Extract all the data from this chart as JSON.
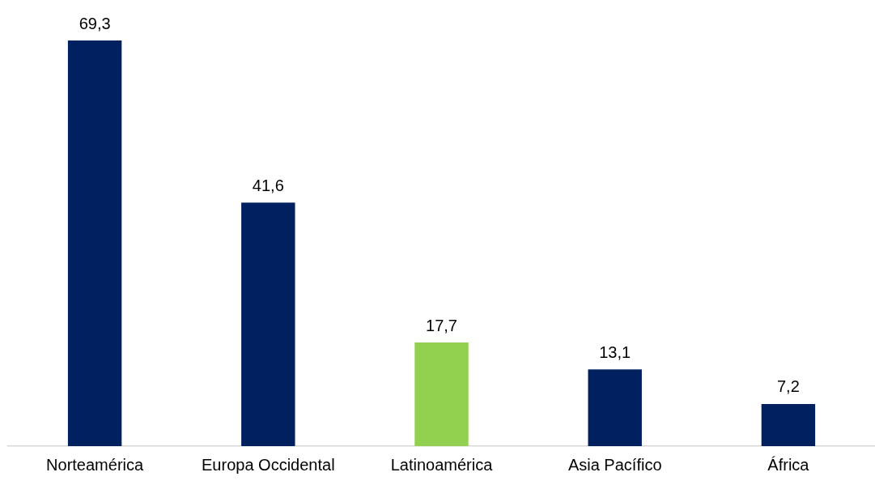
{
  "chart_data": {
    "type": "bar",
    "categories": [
      "Norteamérica",
      "Europa Occidental",
      "Latinoamérica",
      "Asia Pacífico",
      "África"
    ],
    "values": [
      69.3,
      41.6,
      17.7,
      13.1,
      7.2
    ],
    "colors": [
      "#002060",
      "#002060",
      "#92d050",
      "#002060",
      "#002060"
    ],
    "value_labels": [
      "69,3",
      "41,6",
      "17,7",
      "13,1",
      "7,2"
    ],
    "grid": false,
    "legend": false
  }
}
